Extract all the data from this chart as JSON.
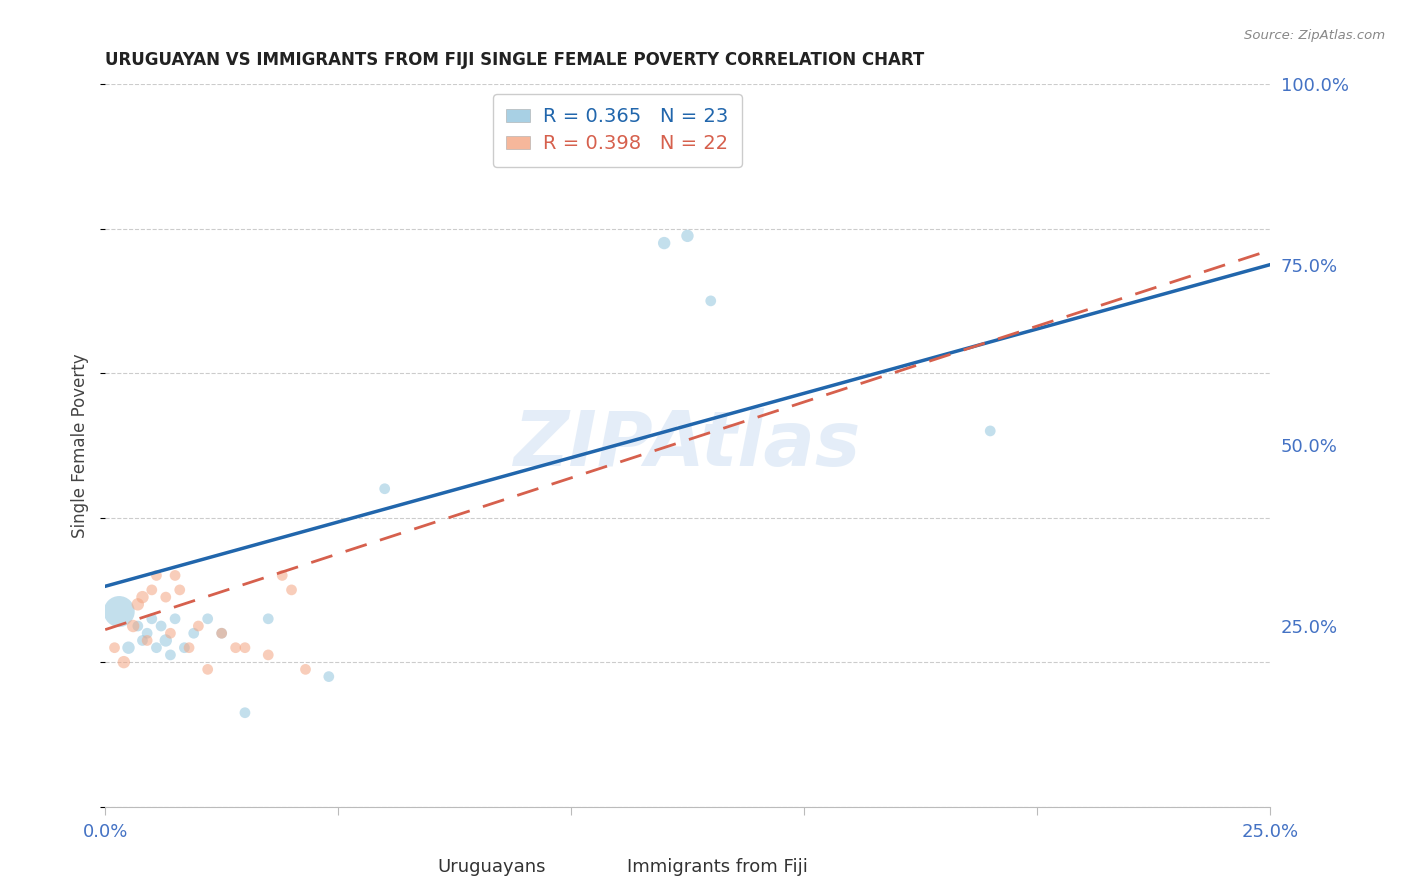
{
  "title": "URUGUAYAN VS IMMIGRANTS FROM FIJI SINGLE FEMALE POVERTY CORRELATION CHART",
  "source": "Source: ZipAtlas.com",
  "xlabel_uruguayans": "Uruguayans",
  "xlabel_fiji": "Immigrants from Fiji",
  "ylabel": "Single Female Poverty",
  "xlim": [
    0.0,
    0.25
  ],
  "ylim": [
    0.0,
    1.0
  ],
  "xticks": [
    0.0,
    0.05,
    0.1,
    0.15,
    0.2,
    0.25
  ],
  "xtick_labels": [
    "0.0%",
    "",
    "",
    "",
    "",
    "25.0%"
  ],
  "ytick_labels": [
    "",
    "25.0%",
    "50.0%",
    "75.0%",
    "100.0%"
  ],
  "ytick_positions": [
    0.0,
    0.25,
    0.5,
    0.75,
    1.0
  ],
  "r_uruguayan": 0.365,
  "n_uruguayan": 23,
  "r_fiji": 0.398,
  "n_fiji": 22,
  "blue_color": "#92c5de",
  "pink_color": "#f4a582",
  "blue_line_color": "#2166ac",
  "pink_line_color": "#d6604d",
  "axis_color": "#4472c4",
  "watermark": "ZIPAtlas",
  "uruguayan_x": [
    0.003,
    0.005,
    0.007,
    0.008,
    0.009,
    0.01,
    0.011,
    0.012,
    0.013,
    0.014,
    0.015,
    0.017,
    0.019,
    0.022,
    0.025,
    0.03,
    0.035,
    0.048,
    0.06,
    0.12,
    0.125,
    0.13,
    0.19
  ],
  "uruguayan_y": [
    0.27,
    0.22,
    0.25,
    0.23,
    0.24,
    0.26,
    0.22,
    0.25,
    0.23,
    0.21,
    0.26,
    0.22,
    0.24,
    0.26,
    0.24,
    0.13,
    0.26,
    0.18,
    0.44,
    0.78,
    0.79,
    0.7,
    0.52
  ],
  "uruguayan_sizes": [
    500,
    80,
    60,
    60,
    60,
    60,
    60,
    60,
    80,
    60,
    60,
    60,
    60,
    60,
    60,
    60,
    60,
    60,
    60,
    80,
    80,
    60,
    60
  ],
  "fiji_x": [
    0.002,
    0.004,
    0.006,
    0.007,
    0.008,
    0.009,
    0.01,
    0.011,
    0.013,
    0.014,
    0.015,
    0.016,
    0.018,
    0.02,
    0.022,
    0.025,
    0.028,
    0.03,
    0.035,
    0.038,
    0.04,
    0.043
  ],
  "fiji_y": [
    0.22,
    0.2,
    0.25,
    0.28,
    0.29,
    0.23,
    0.3,
    0.32,
    0.29,
    0.24,
    0.32,
    0.3,
    0.22,
    0.25,
    0.19,
    0.24,
    0.22,
    0.22,
    0.21,
    0.32,
    0.3,
    0.19
  ],
  "fiji_sizes": [
    60,
    80,
    80,
    80,
    80,
    60,
    60,
    60,
    60,
    60,
    60,
    60,
    60,
    60,
    60,
    60,
    60,
    60,
    60,
    60,
    60,
    60
  ],
  "ury_line_x0": 0.0,
  "ury_line_y0": 0.305,
  "ury_line_x1": 0.25,
  "ury_line_y1": 0.75,
  "fiji_line_x0": 0.0,
  "fiji_line_y0": 0.245,
  "fiji_line_x1": 0.25,
  "fiji_line_y1": 0.77
}
